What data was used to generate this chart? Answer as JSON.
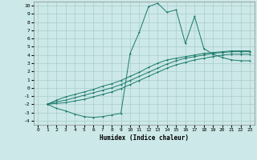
{
  "xlabel": "Humidex (Indice chaleur)",
  "bg_color": "#cce8e8",
  "grid_color": "#aacccc",
  "line_color": "#1a7a6a",
  "xlim": [
    -0.5,
    23.5
  ],
  "ylim": [
    -4.5,
    10.5
  ],
  "xticks": [
    0,
    1,
    2,
    3,
    4,
    5,
    6,
    7,
    8,
    9,
    10,
    11,
    12,
    13,
    14,
    15,
    16,
    17,
    18,
    19,
    20,
    21,
    22,
    23
  ],
  "yticks": [
    -4,
    -3,
    -2,
    -1,
    0,
    1,
    2,
    3,
    4,
    5,
    6,
    7,
    8,
    9,
    10
  ],
  "curve1_x": [
    1,
    2,
    3,
    4,
    5,
    6,
    7,
    8,
    9,
    10,
    11,
    12,
    13,
    14,
    15,
    16,
    17,
    18,
    19,
    20,
    21,
    22,
    23
  ],
  "curve1_y": [
    -2.0,
    -2.5,
    -2.8,
    -3.2,
    -3.5,
    -3.6,
    -3.5,
    -3.3,
    -3.1,
    4.2,
    6.8,
    9.9,
    10.3,
    9.2,
    9.5,
    5.4,
    8.7,
    4.8,
    4.1,
    3.7,
    3.4,
    3.3,
    3.3
  ],
  "curve2_x": [
    1,
    2,
    3,
    4,
    5,
    6,
    7,
    8,
    9,
    10,
    11,
    12,
    13,
    14,
    15,
    16,
    17,
    18,
    19,
    20,
    21,
    22,
    23
  ],
  "curve2_y": [
    -2.0,
    -1.9,
    -1.8,
    -1.6,
    -1.4,
    -1.1,
    -0.8,
    -0.5,
    -0.1,
    0.4,
    0.9,
    1.4,
    1.9,
    2.4,
    2.8,
    3.1,
    3.4,
    3.6,
    3.8,
    4.0,
    4.1,
    4.1,
    4.1
  ],
  "curve3_x": [
    1,
    2,
    3,
    4,
    5,
    6,
    7,
    8,
    9,
    10,
    11,
    12,
    13,
    14,
    15,
    16,
    17,
    18,
    19,
    20,
    21,
    22,
    23
  ],
  "curve3_y": [
    -2.0,
    -1.7,
    -1.5,
    -1.2,
    -0.9,
    -0.6,
    -0.3,
    0.0,
    0.4,
    0.9,
    1.4,
    1.9,
    2.4,
    2.9,
    3.3,
    3.6,
    3.8,
    4.0,
    4.2,
    4.3,
    4.4,
    4.4,
    4.4
  ],
  "curve4_x": [
    1,
    2,
    3,
    4,
    5,
    6,
    7,
    8,
    9,
    10,
    11,
    12,
    13,
    14,
    15,
    16,
    17,
    18,
    19,
    20,
    21,
    22,
    23
  ],
  "curve4_y": [
    -2.0,
    -1.5,
    -1.1,
    -0.8,
    -0.5,
    -0.2,
    0.2,
    0.5,
    0.9,
    1.4,
    1.9,
    2.5,
    3.0,
    3.4,
    3.6,
    3.8,
    4.0,
    4.2,
    4.3,
    4.4,
    4.5,
    4.5,
    4.5
  ]
}
